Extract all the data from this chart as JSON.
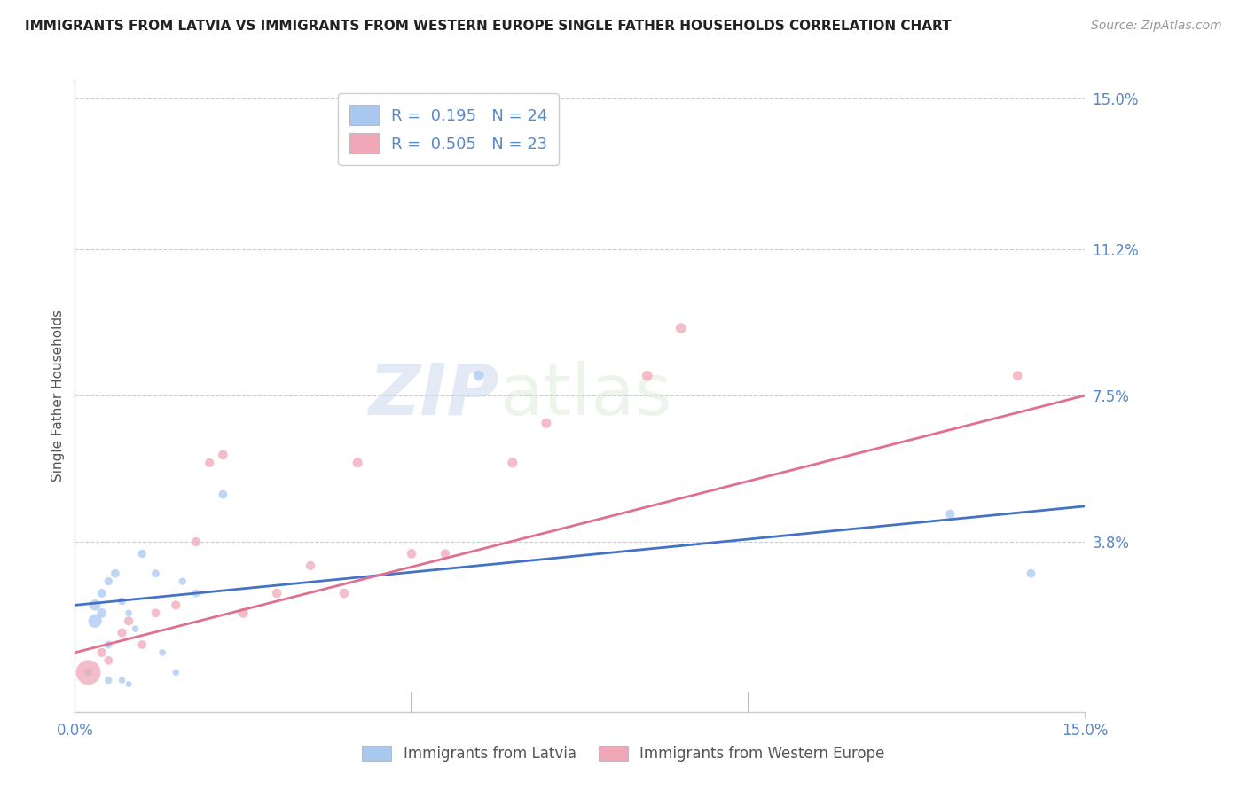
{
  "title": "IMMIGRANTS FROM LATVIA VS IMMIGRANTS FROM WESTERN EUROPE SINGLE FATHER HOUSEHOLDS CORRELATION CHART",
  "source": "Source: ZipAtlas.com",
  "ylabel": "Single Father Households",
  "xlabel_blue": "Immigrants from Latvia",
  "xlabel_pink": "Immigrants from Western Europe",
  "watermark_zip": "ZIP",
  "watermark_atlas": "atlas",
  "xmin": 0.0,
  "xmax": 0.15,
  "ymin": -0.005,
  "ymax": 0.155,
  "yticks": [
    0.038,
    0.075,
    0.112,
    0.15
  ],
  "ytick_labels": [
    "3.8%",
    "7.5%",
    "11.2%",
    "15.0%"
  ],
  "xticks": [
    0.0,
    0.05,
    0.1,
    0.15
  ],
  "xtick_labels": [
    "0.0%",
    "",
    "",
    "15.0%"
  ],
  "legend_blue_R": "0.195",
  "legend_blue_N": "24",
  "legend_pink_R": "0.505",
  "legend_pink_N": "23",
  "blue_color": "#a8c8f0",
  "pink_color": "#f0a8b8",
  "blue_line_color": "#4472c4",
  "pink_line_color": "#e07090",
  "axis_color": "#5588cc",
  "title_color": "#222222",
  "background_color": "#ffffff",
  "blue_scatter_x": [
    0.002,
    0.003,
    0.003,
    0.004,
    0.004,
    0.005,
    0.005,
    0.005,
    0.006,
    0.007,
    0.007,
    0.008,
    0.008,
    0.009,
    0.01,
    0.012,
    0.013,
    0.015,
    0.016,
    0.018,
    0.022,
    0.06,
    0.13,
    0.142
  ],
  "blue_scatter_y": [
    0.005,
    0.018,
    0.022,
    0.02,
    0.025,
    0.003,
    0.012,
    0.028,
    0.03,
    0.003,
    0.023,
    0.002,
    0.02,
    0.016,
    0.035,
    0.03,
    0.01,
    0.005,
    0.028,
    0.025,
    0.05,
    0.08,
    0.045,
    0.03
  ],
  "blue_scatter_sizes": [
    45,
    120,
    80,
    60,
    50,
    35,
    40,
    45,
    50,
    30,
    40,
    25,
    30,
    30,
    45,
    40,
    30,
    30,
    35,
    40,
    50,
    65,
    55,
    50
  ],
  "pink_scatter_x": [
    0.002,
    0.004,
    0.005,
    0.007,
    0.008,
    0.01,
    0.012,
    0.015,
    0.018,
    0.02,
    0.022,
    0.025,
    0.03,
    0.035,
    0.04,
    0.042,
    0.05,
    0.055,
    0.065,
    0.07,
    0.085,
    0.09,
    0.14
  ],
  "pink_scatter_y": [
    0.005,
    0.01,
    0.008,
    0.015,
    0.018,
    0.012,
    0.02,
    0.022,
    0.038,
    0.058,
    0.06,
    0.02,
    0.025,
    0.032,
    0.025,
    0.058,
    0.035,
    0.035,
    0.058,
    0.068,
    0.08,
    0.092,
    0.08
  ],
  "pink_scatter_sizes": [
    400,
    55,
    50,
    55,
    55,
    50,
    50,
    55,
    55,
    55,
    60,
    65,
    60,
    55,
    60,
    65,
    60,
    55,
    65,
    65,
    70,
    70,
    60
  ],
  "blue_trend_y_start": 0.022,
  "blue_trend_y_end": 0.047,
  "pink_trend_y_start": 0.01,
  "pink_trend_y_end": 0.075
}
